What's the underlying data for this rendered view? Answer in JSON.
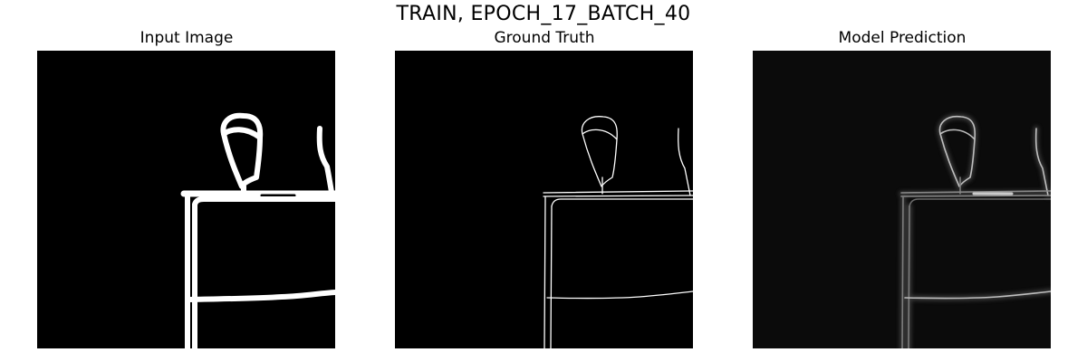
{
  "figure": {
    "title": "TRAIN, EPOCH_17_BATCH_40"
  },
  "panels": [
    {
      "title": "Input Image"
    },
    {
      "title": "Ground Truth"
    },
    {
      "title": "Model Prediction"
    }
  ],
  "colors": {
    "background": "#ffffff",
    "image_black": "#000000",
    "stroke_white": "#ffffff",
    "prediction_background": "#0b0b0b",
    "prediction_stroke": "#d8d8d8"
  }
}
